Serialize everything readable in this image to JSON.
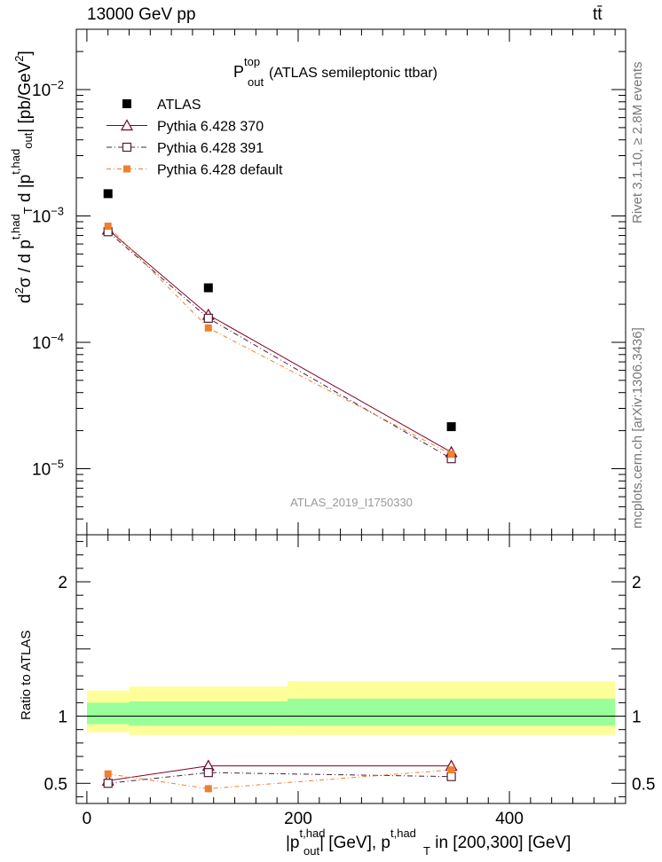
{
  "header": {
    "energy_label": "13000 GeV pp",
    "process_label": "tt̄"
  },
  "side": {
    "rivet_label": "Rivet 3.1.10, ≥ 2.8M events",
    "source_label": "mcplots.cern.ch [arXiv:1306.3436]"
  },
  "colors": {
    "atlas": "#000000",
    "pythia_370": "#800020",
    "pythia_391": "#4d1f3a",
    "pythia_default": "#f07f2e",
    "band_outer": "#ffff99",
    "band_inner": "#99ff99"
  },
  "chart_data": [
    {
      "type": "scatter",
      "panel": "main",
      "title_main": "P",
      "title_sup": "top",
      "title_sub": "out",
      "title_rest": "(ATLAS semileptonic ttbar)",
      "ylabel": "d²σ / d p_T^{t,had} d |p_out^{t,had}| [pb/GeV²]",
      "yscale": "log",
      "ylim": [
        3e-06,
        0.03
      ],
      "xlim": [
        -10,
        510
      ],
      "y_ticks": [
        "10^-5",
        "10^-4",
        "10^-3",
        "10^-2"
      ],
      "watermark": "ATLAS_2019_I1750330",
      "legend_position": "top-left",
      "series": [
        {
          "name": "ATLAS",
          "style": "data",
          "x": [
            20,
            115,
            345
          ],
          "y": [
            0.0015,
            0.00027,
            2.15e-05
          ]
        },
        {
          "name": "Pythia 6.428 370",
          "style": "solid-triangle",
          "x": [
            20,
            115,
            345
          ],
          "y": [
            0.00078,
            0.000165,
            1.35e-05
          ]
        },
        {
          "name": "Pythia 6.428 391",
          "style": "dashdot-square",
          "x": [
            20,
            115,
            345
          ],
          "y": [
            0.00075,
            0.000155,
            1.2e-05
          ]
        },
        {
          "name": "Pythia 6.428 default",
          "style": "dashdot-filledsquare",
          "x": [
            20,
            115,
            345
          ],
          "y": [
            0.00083,
            0.00013,
            1.3e-05
          ]
        }
      ]
    },
    {
      "type": "line",
      "panel": "ratio",
      "ylabel": "Ratio to ATLAS",
      "ylim": [
        0.35,
        2.35
      ],
      "xlim": [
        -10,
        510
      ],
      "y_ticks": [
        0.5,
        1,
        2
      ],
      "x_ticks": [
        0,
        200,
        400
      ],
      "xlabel_parts": [
        "|p",
        "t,had",
        "out",
        "| [GeV], p",
        "t,had",
        "T",
        " in [200,300] [GeV]"
      ],
      "bins": [
        [
          -10,
          40
        ],
        [
          40,
          190
        ],
        [
          190,
          500
        ]
      ],
      "band_outer": [
        [
          0.88,
          1.19
        ],
        [
          0.86,
          1.22
        ],
        [
          0.86,
          1.26
        ]
      ],
      "band_inner": [
        [
          0.94,
          1.1
        ],
        [
          0.93,
          1.11
        ],
        [
          0.93,
          1.13
        ]
      ],
      "series": [
        {
          "name": "Pythia 6.428 370",
          "x": [
            20,
            115,
            345
          ],
          "y": [
            0.52,
            0.63,
            0.63
          ]
        },
        {
          "name": "Pythia 6.428 391",
          "x": [
            20,
            115,
            345
          ],
          "y": [
            0.5,
            0.58,
            0.55
          ]
        },
        {
          "name": "Pythia 6.428 default",
          "x": [
            20,
            115,
            345
          ],
          "y": [
            0.57,
            0.46,
            0.6
          ]
        }
      ]
    }
  ]
}
